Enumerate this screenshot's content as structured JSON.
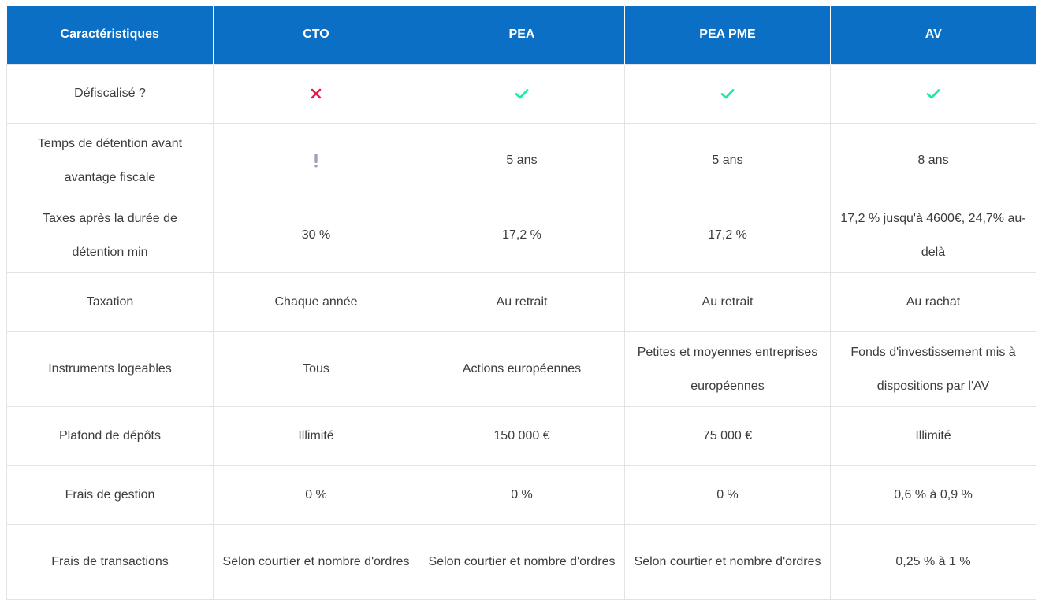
{
  "table": {
    "headers": [
      "Caractéristiques",
      "CTO",
      "PEA",
      "PEA PME",
      "AV"
    ],
    "rows": [
      {
        "label": "Défiscalisé ?",
        "cells": [
          "",
          "",
          "",
          ""
        ],
        "icons": [
          "cross-icon",
          "check-icon",
          "check-icon",
          "check-icon"
        ]
      },
      {
        "label": "Temps de détention avant avantage fiscale",
        "cells": [
          "",
          "5 ans",
          "5 ans",
          "8 ans"
        ],
        "icons": [
          "exclamation-icon",
          "",
          "",
          ""
        ]
      },
      {
        "label": "Taxes après la durée de détention min",
        "cells": [
          "30 %",
          "17,2 %",
          "17,2 %",
          "17,2 % jusqu'à 4600€, 24,7% au-delà"
        ]
      },
      {
        "label": "Taxation",
        "cells": [
          "Chaque année",
          "Au retrait",
          "Au retrait",
          "Au rachat"
        ]
      },
      {
        "label": "Instruments logeables",
        "cells": [
          "Tous",
          "Actions européennes",
          "Petites et moyennes entreprises européennes",
          "Fonds d'investissement mis à dispositions par l'AV"
        ]
      },
      {
        "label": "Plafond de dépôts",
        "cells": [
          "Illimité",
          "150 000 €",
          "75 000 €",
          "Illimité"
        ]
      },
      {
        "label": "Frais de gestion",
        "cells": [
          "0 %",
          "0 %",
          "0 %",
          "0,6 % à 0,9 %"
        ]
      },
      {
        "label": "Frais de transactions",
        "cells": [
          "Selon courtier et nombre d'ordres",
          "Selon courtier et nombre d'ordres",
          "Selon courtier et nombre d'ordres",
          "0,25 % à 1 %"
        ]
      }
    ]
  },
  "colors": {
    "header_bg": "#0a6fc5",
    "header_text": "#ffffff",
    "cross": "#e8194b",
    "check": "#1de9a7",
    "exclamation": "#9aa4b3"
  }
}
